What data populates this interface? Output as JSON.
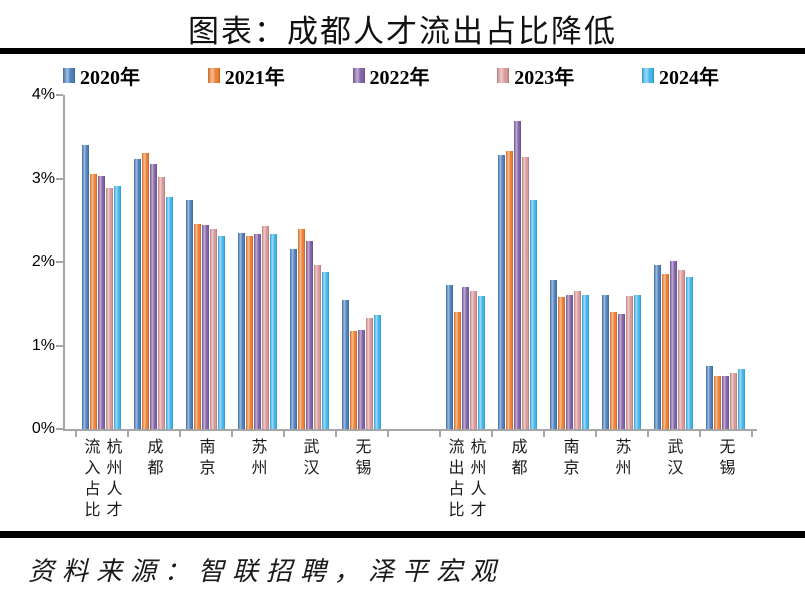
{
  "title": "图表：成都人才流出占比降低",
  "source": "资料来源：智联招聘，泽平宏观",
  "legend": [
    {
      "label": "2020年",
      "color": "#4E81BD"
    },
    {
      "label": "2021年",
      "color": "#ED8136"
    },
    {
      "label": "2022年",
      "color": "#8465A8"
    },
    {
      "label": "2023年",
      "color": "#D99A9A"
    },
    {
      "label": "2024年",
      "color": "#44B8EC"
    }
  ],
  "chart_data": {
    "type": "bar",
    "title": "图表：成都人才流出占比降低",
    "ylim": [
      0,
      4
    ],
    "ytick_labels": [
      "0%",
      "1%",
      "2%",
      "3%",
      "4%"
    ],
    "grid": false,
    "legend_position": "top",
    "groups": [
      {
        "name": "人才流入占比",
        "category_span": [
          0,
          5
        ]
      },
      {
        "name": "人才流出占比",
        "category_span": [
          6,
          11
        ]
      }
    ],
    "categories": [
      {
        "city": "杭州",
        "label_columns": [
          "流入占比",
          "杭州人才"
        ]
      },
      {
        "city": "成都",
        "label_columns": [
          "成都"
        ]
      },
      {
        "city": "南京",
        "label_columns": [
          "南京"
        ]
      },
      {
        "city": "苏州",
        "label_columns": [
          "苏州"
        ]
      },
      {
        "city": "武汉",
        "label_columns": [
          "武汉"
        ]
      },
      {
        "city": "无锡",
        "label_columns": [
          "无锡"
        ]
      },
      {
        "city": "杭州",
        "label_columns": [
          "流出占比",
          "杭州人才"
        ]
      },
      {
        "city": "成都",
        "label_columns": [
          "成都"
        ]
      },
      {
        "city": "南京",
        "label_columns": [
          "南京"
        ]
      },
      {
        "city": "苏州",
        "label_columns": [
          "苏州"
        ]
      },
      {
        "city": "武汉",
        "label_columns": [
          "武汉"
        ]
      },
      {
        "city": "无锡",
        "label_columns": [
          "无锡"
        ]
      }
    ],
    "series": [
      {
        "name": "2020年",
        "color": "#4E81BD",
        "values": [
          3.4,
          3.23,
          2.74,
          2.35,
          2.15,
          1.54,
          1.73,
          3.28,
          1.79,
          1.6,
          1.97,
          0.75
        ]
      },
      {
        "name": "2021年",
        "color": "#ED8136",
        "values": [
          3.05,
          3.31,
          2.46,
          2.31,
          2.39,
          1.17,
          1.4,
          3.33,
          1.58,
          1.4,
          1.86,
          0.63
        ]
      },
      {
        "name": "2022年",
        "color": "#8465A8",
        "values": [
          3.03,
          3.17,
          2.44,
          2.34,
          2.25,
          1.19,
          1.7,
          3.69,
          1.61,
          1.38,
          2.01,
          0.63
        ]
      },
      {
        "name": "2023年",
        "color": "#D99A9A",
        "values": [
          2.89,
          3.02,
          2.39,
          2.43,
          1.96,
          1.33,
          1.65,
          3.26,
          1.65,
          1.59,
          1.9,
          0.67
        ]
      },
      {
        "name": "2024年",
        "color": "#44B8EC",
        "values": [
          2.91,
          2.78,
          2.31,
          2.33,
          1.88,
          1.37,
          1.59,
          2.74,
          1.61,
          1.6,
          1.82,
          0.72
        ]
      }
    ]
  }
}
